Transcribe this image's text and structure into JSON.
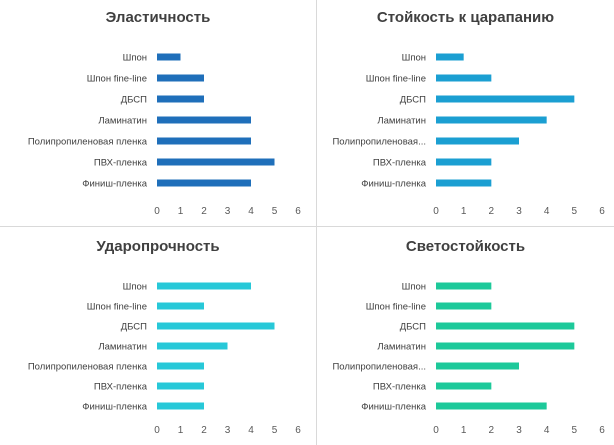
{
  "chart_data": [
    {
      "type": "bar",
      "orientation": "horizontal",
      "title": "Эластичность",
      "categories": [
        "Шпон",
        "Шпон fine-line",
        "ДБСП",
        "Ламинатин",
        "Полипропиленовая пленка",
        "ПВХ-пленка",
        "Финиш-пленка"
      ],
      "values": [
        1,
        2,
        2,
        4,
        4,
        5,
        4
      ],
      "xlim": [
        0,
        6
      ],
      "ticks": [
        0,
        1,
        2,
        3,
        4,
        5,
        6
      ],
      "color": "#1f6fba",
      "grid": false
    },
    {
      "type": "bar",
      "orientation": "horizontal",
      "title": "Стойкость к царапанию",
      "categories": [
        "Шпон",
        "Шпон fine-line",
        "ДБСП",
        "Ламинатин",
        "Полипропиленовая...",
        "ПВХ-пленка",
        "Финиш-пленка"
      ],
      "values": [
        1,
        2,
        5,
        4,
        3,
        2,
        2
      ],
      "xlim": [
        0,
        6
      ],
      "ticks": [
        0,
        1,
        2,
        3,
        4,
        5,
        6
      ],
      "color": "#1b9fd2",
      "grid": false
    },
    {
      "type": "bar",
      "orientation": "horizontal",
      "title": "Ударопрочность",
      "categories": [
        "Шпон",
        "Шпон fine-line",
        "ДБСП",
        "Ламинатин",
        "Полипропиленовая пленка",
        "ПВХ-пленка",
        "Финиш-пленка"
      ],
      "values": [
        4,
        2,
        5,
        3,
        2,
        2,
        2
      ],
      "xlim": [
        0,
        6
      ],
      "ticks": [
        0,
        1,
        2,
        3,
        4,
        5,
        6
      ],
      "color": "#27c8d8",
      "grid": false
    },
    {
      "type": "bar",
      "orientation": "horizontal",
      "title": "Светостойкость",
      "categories": [
        "Шпон",
        "Шпон fine-line",
        "ДБСП",
        "Ламинатин",
        "Полипропиленовая...",
        "ПВХ-пленка",
        "Финиш-пленка"
      ],
      "values": [
        2,
        2,
        5,
        5,
        3,
        2,
        4
      ],
      "xlim": [
        0,
        6
      ],
      "ticks": [
        0,
        1,
        2,
        3,
        4,
        5,
        6
      ],
      "color": "#1dc99a",
      "grid": false
    }
  ]
}
